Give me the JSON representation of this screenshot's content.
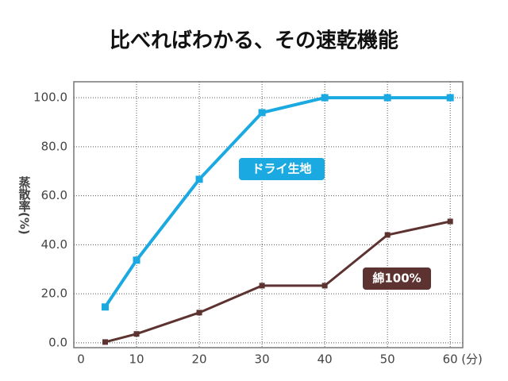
{
  "chart_data": {
    "type": "line",
    "title": "比べればわかる、その速乾機能",
    "y_label": "蒸散率(%)",
    "x_unit": "(分)",
    "x": [
      5,
      10,
      20,
      30,
      40,
      50,
      60
    ],
    "series": [
      {
        "name": "ドライ生地",
        "color": "#1aa9e1",
        "values": [
          14.6,
          33.7,
          66.7,
          93.9,
          100,
          100,
          100
        ]
      },
      {
        "name": "綿100%",
        "color": "#5c3330",
        "values": [
          0.3,
          3.6,
          12.3,
          23.3,
          23.3,
          44,
          49.5
        ]
      }
    ],
    "xlim": [
      0,
      62
    ],
    "xticks": [
      0,
      10,
      20,
      30,
      40,
      50,
      60
    ],
    "ylim": [
      -2,
      106.5
    ],
    "yticks": [
      {
        "value": 0,
        "label": "0.0"
      },
      {
        "value": 20,
        "label": "20.0"
      },
      {
        "value": 40,
        "label": "40.0"
      },
      {
        "value": 60,
        "label": "60.0"
      },
      {
        "value": 80,
        "label": "80.0"
      },
      {
        "value": 100,
        "label": "100.0"
      }
    ],
    "grid": true
  }
}
